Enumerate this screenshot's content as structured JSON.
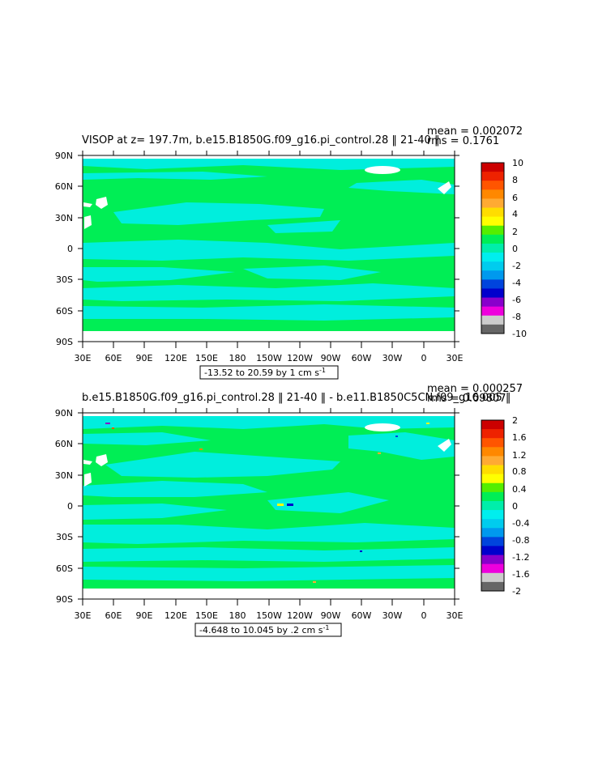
{
  "panels": [
    {
      "title": "VISOP at z= 197.7m, b.e15.B1850G.f09_g16.pi_control.28 ‖ 21-40 ‖",
      "mean": "mean = 0.002072",
      "rms": "rms = 0.1761",
      "range": "-13.52 to 20.59 by 1 cm s",
      "range_exp": "-1",
      "colorbar_labels": [
        "10",
        "8",
        "6",
        "4",
        "2",
        "0",
        "-2",
        "-4",
        "-6",
        "-8",
        "-10"
      ]
    },
    {
      "title": "b.e15.B1850G.f09_g16.pi_control.28 ‖ 21-40 ‖ - b.e11.B1850C5CN.f09_g16.005 ‖",
      "mean": "mean = 0.000257",
      "rms": "rms = 0.09807",
      "range": "-4.648 to 10.045 by .2 cm s",
      "range_exp": "-1",
      "colorbar_labels": [
        "2",
        "1.6",
        "1.2",
        "0.8",
        "0.4",
        "0",
        "-0.4",
        "-0.8",
        "-1.2",
        "-1.6",
        "-2"
      ]
    }
  ],
  "lat_labels": [
    "90N",
    "60N",
    "30N",
    "0",
    "30S",
    "60S",
    "90S"
  ],
  "lon_labels": [
    "30E",
    "60E",
    "90E",
    "120E",
    "150E",
    "180",
    "150W",
    "120W",
    "90W",
    "60W",
    "30W",
    "0",
    "30E"
  ],
  "colors": {
    "ocean_main": "#00ee55",
    "ocean_alt": "#00eedd",
    "land": "#ffffff",
    "colorbar": [
      "#cc0000",
      "#ee2200",
      "#ff5500",
      "#ff8800",
      "#ffaa33",
      "#ffdd00",
      "#ffff00",
      "#55ee00",
      "#00ee55",
      "#00eeaa",
      "#00eeee",
      "#00ccee",
      "#0099ee",
      "#0044dd",
      "#0000cc",
      "#8800cc",
      "#ee00dd",
      "#cccccc",
      "#666666"
    ]
  }
}
